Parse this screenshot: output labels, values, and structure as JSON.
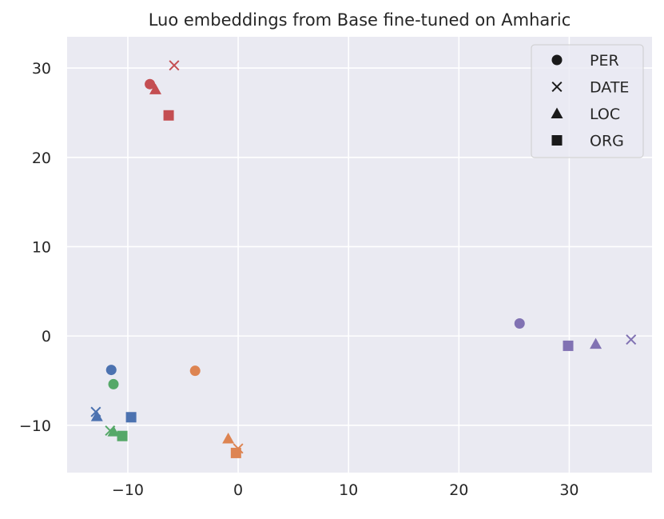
{
  "chart_data": {
    "type": "scatter",
    "title": "Luo embeddings from Base fine-tuned on Amharic",
    "xlabel": "",
    "ylabel": "",
    "xlim": [
      -15.5,
      37.5
    ],
    "ylim": [
      -15.3,
      33.5
    ],
    "x_ticks": [
      -10,
      0,
      10,
      20,
      30
    ],
    "y_ticks": [
      -10,
      0,
      10,
      20,
      30
    ],
    "x_tick_labels": [
      "−10",
      "0",
      "10",
      "20",
      "30"
    ],
    "y_tick_labels": [
      "−10",
      "0",
      "10",
      "20",
      "30"
    ],
    "grid": true,
    "background": "#eaeaf2",
    "legend_position": "top-right",
    "legend": [
      {
        "label": "PER",
        "marker": "circle"
      },
      {
        "label": "DATE",
        "marker": "x"
      },
      {
        "label": "LOC",
        "marker": "triangle"
      },
      {
        "label": "ORG",
        "marker": "square"
      }
    ],
    "groups": [
      {
        "color": "#c44e52",
        "points": [
          {
            "marker": "circle",
            "x": -8.0,
            "y": 28.2
          },
          {
            "marker": "x",
            "x": -5.8,
            "y": 30.3
          },
          {
            "marker": "triangle",
            "x": -7.5,
            "y": 27.6
          },
          {
            "marker": "square",
            "x": -6.3,
            "y": 24.7
          }
        ]
      },
      {
        "color": "#4c72b0",
        "points": [
          {
            "marker": "circle",
            "x": -11.5,
            "y": -3.8
          },
          {
            "marker": "x",
            "x": -12.9,
            "y": -8.5
          },
          {
            "marker": "triangle",
            "x": -12.8,
            "y": -9.0
          },
          {
            "marker": "square",
            "x": -9.7,
            "y": -9.1
          }
        ]
      },
      {
        "color": "#55a868",
        "points": [
          {
            "marker": "circle",
            "x": -11.3,
            "y": -5.4
          },
          {
            "marker": "x",
            "x": -11.6,
            "y": -10.6
          },
          {
            "marker": "triangle",
            "x": -11.3,
            "y": -10.7
          },
          {
            "marker": "square",
            "x": -10.5,
            "y": -11.2
          }
        ]
      },
      {
        "color": "#dd8452",
        "points": [
          {
            "marker": "circle",
            "x": -3.9,
            "y": -3.9
          },
          {
            "marker": "x",
            "x": 0.0,
            "y": -12.6
          },
          {
            "marker": "triangle",
            "x": -0.9,
            "y": -11.5
          },
          {
            "marker": "square",
            "x": -0.2,
            "y": -13.1
          }
        ]
      },
      {
        "color": "#8172b3",
        "points": [
          {
            "marker": "circle",
            "x": 25.5,
            "y": 1.4
          },
          {
            "marker": "x",
            "x": 35.6,
            "y": -0.4
          },
          {
            "marker": "triangle",
            "x": 32.4,
            "y": -0.9
          },
          {
            "marker": "square",
            "x": 29.9,
            "y": -1.1
          }
        ]
      }
    ]
  }
}
